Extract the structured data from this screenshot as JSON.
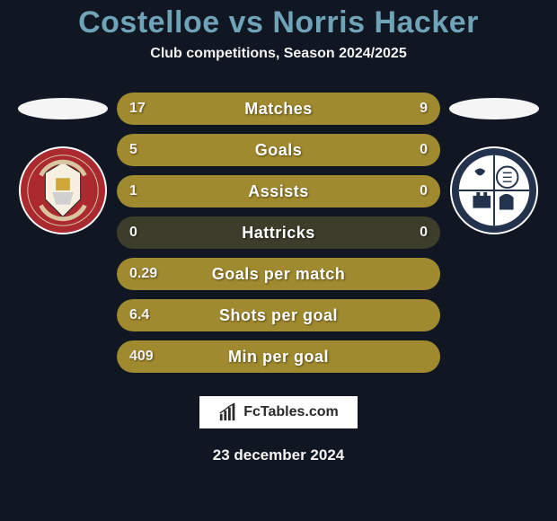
{
  "header": {
    "title": "Costelloe vs Norris Hacker",
    "subtitle": "Club competitions, Season 2024/2025"
  },
  "colors": {
    "background": "#101722",
    "title_color": "#6ea3b8",
    "bar_fill": "#a08a2f",
    "bar_track": "#3c3d2a",
    "text": "#ffffff"
  },
  "left_player": {
    "ellipse_color": "#f5f5f5",
    "crest_bg": "#aa2a2f",
    "crest_ring": "#ffffff"
  },
  "right_player": {
    "ellipse_color": "#f5f5f5",
    "crest_bg": "#23334d",
    "crest_ring": "#ffffff"
  },
  "stats": [
    {
      "label": "Matches",
      "left_val": "17",
      "right_val": "9",
      "left_pct": 65.4,
      "right_pct": 34.6
    },
    {
      "label": "Goals",
      "left_val": "5",
      "right_val": "0",
      "left_pct": 100,
      "right_pct": 0
    },
    {
      "label": "Assists",
      "left_val": "1",
      "right_val": "0",
      "left_pct": 100,
      "right_pct": 0
    },
    {
      "label": "Hattricks",
      "left_val": "0",
      "right_val": "0",
      "left_pct": 0,
      "right_pct": 0
    },
    {
      "label": "Goals per match",
      "left_val": "0.29",
      "right_val": "",
      "left_pct": 100,
      "right_pct": 0
    },
    {
      "label": "Shots per goal",
      "left_val": "6.4",
      "right_val": "",
      "left_pct": 100,
      "right_pct": 0
    },
    {
      "label": "Min per goal",
      "left_val": "409",
      "right_val": "",
      "left_pct": 100,
      "right_pct": 0
    }
  ],
  "footer": {
    "logo_text": "FcTables.com",
    "date": "23 december 2024"
  }
}
